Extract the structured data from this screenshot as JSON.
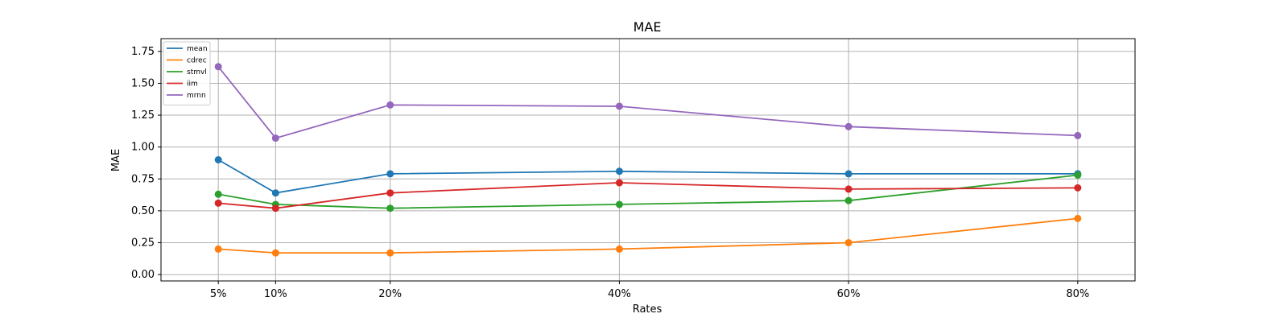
{
  "chart_data": {
    "type": "line",
    "title": "MAE",
    "xlabel": "Rates",
    "ylabel": "MAE",
    "x": [
      0.05,
      0.1,
      0.2,
      0.4,
      0.6,
      0.8
    ],
    "xtick_labels": [
      "5%",
      "10%",
      "20%",
      "40%",
      "60%",
      "80%"
    ],
    "xlim": [
      0.0,
      0.85
    ],
    "ylim": [
      -0.05,
      1.85
    ],
    "yticks": [
      0.0,
      0.25,
      0.5,
      0.75,
      1.0,
      1.25,
      1.5,
      1.75
    ],
    "ytick_labels": [
      "0.00",
      "0.25",
      "0.50",
      "0.75",
      "1.00",
      "1.25",
      "1.50",
      "1.75"
    ],
    "grid": true,
    "legend_position": "top-left",
    "series": [
      {
        "name": "mean",
        "color": "#1f77b4",
        "values": [
          0.9,
          0.64,
          0.79,
          0.81,
          0.79,
          0.79
        ]
      },
      {
        "name": "cdrec",
        "color": "#ff7f0e",
        "values": [
          0.2,
          0.17,
          0.17,
          0.2,
          0.25,
          0.44
        ]
      },
      {
        "name": "stmvl",
        "color": "#2ca02c",
        "values": [
          0.63,
          0.55,
          0.52,
          0.55,
          0.58,
          0.78
        ]
      },
      {
        "name": "iim",
        "color": "#d62728",
        "values": [
          0.56,
          0.52,
          0.64,
          0.72,
          0.67,
          0.68
        ]
      },
      {
        "name": "mrnn",
        "color": "#9467bd",
        "values": [
          1.63,
          1.07,
          1.33,
          1.32,
          1.16,
          1.09
        ]
      }
    ]
  }
}
